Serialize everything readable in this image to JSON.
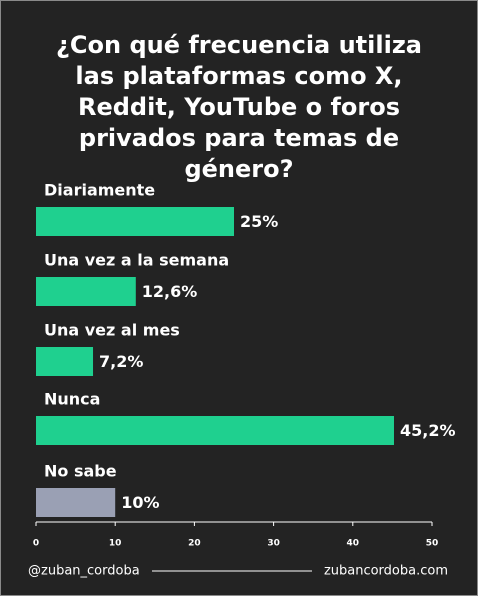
{
  "chart_data": {
    "type": "bar",
    "orientation": "horizontal",
    "title": "¿Con qué frecuencia utiliza las plataformas como X, Reddit, YouTube o foros privados para temas de género?",
    "categories": [
      "Diariamente",
      "Una vez a la semana",
      "Una vez al mes",
      "Nunca",
      "No sabe"
    ],
    "values": [
      25,
      12.6,
      7.2,
      45.2,
      10
    ],
    "value_labels": [
      "25%",
      "12,6%",
      "7,2%",
      "45,2%",
      "10%"
    ],
    "colors": [
      "#1fd08f",
      "#1fd08f",
      "#1fd08f",
      "#1fd08f",
      "#9aa0b4"
    ],
    "xlim": [
      0,
      50
    ],
    "xticks": [
      0,
      10,
      20,
      30,
      40,
      50
    ]
  },
  "footer": {
    "handle": "@zuban_cordoba",
    "website": "zubancordoba.com"
  }
}
